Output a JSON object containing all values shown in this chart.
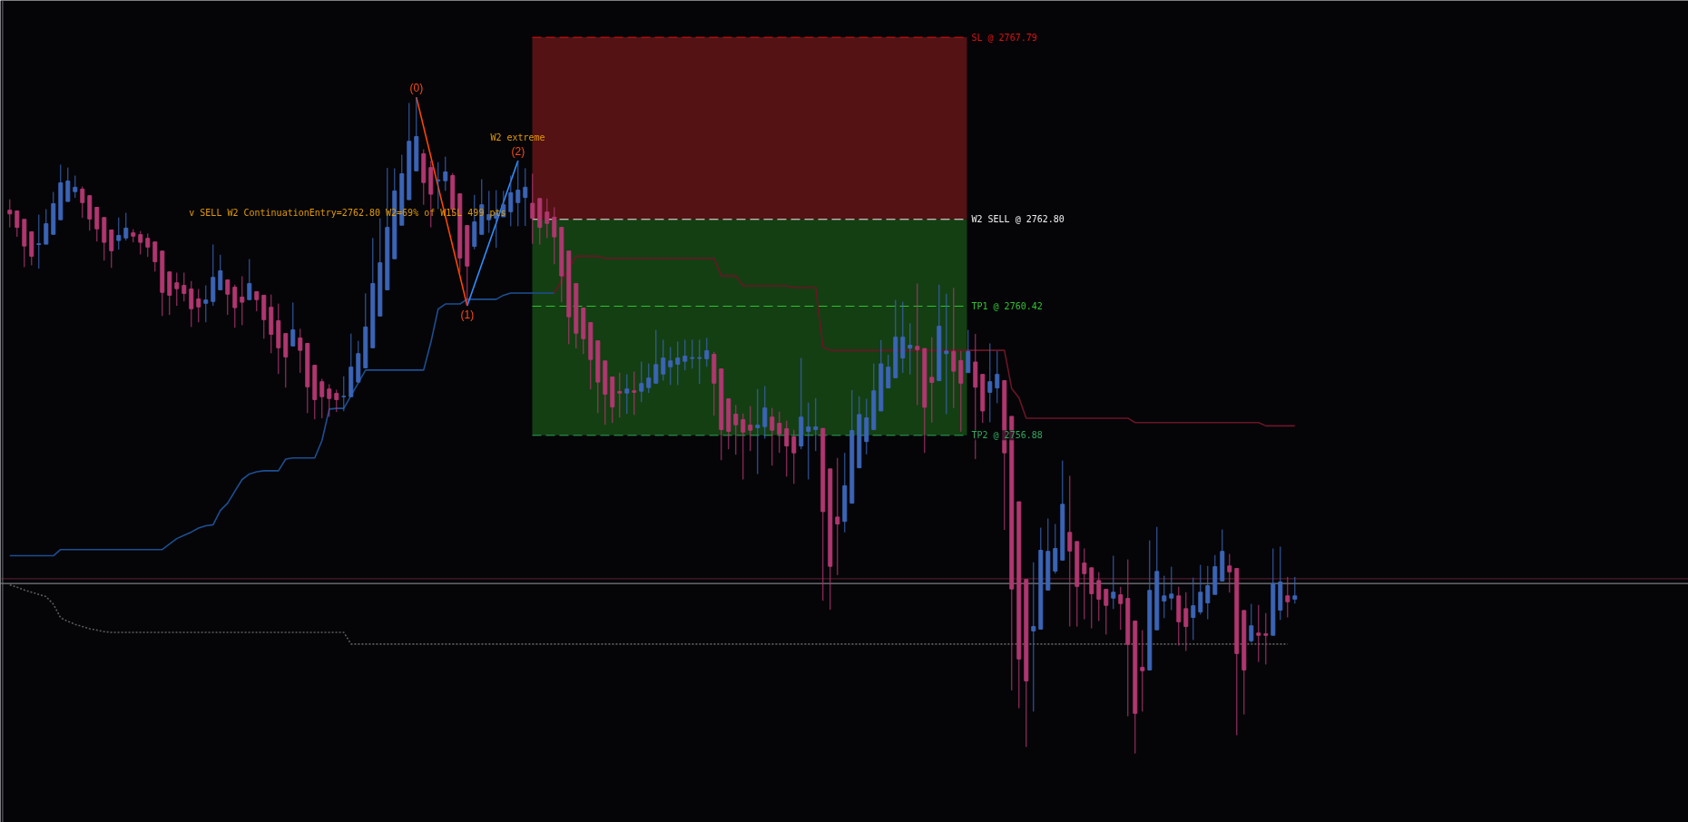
{
  "chart_data": {
    "type": "candlestick",
    "categories": [
      null,
      null,
      null,
      null,
      null,
      null,
      null,
      null,
      null,
      null,
      null,
      null,
      null,
      null,
      null,
      null,
      null,
      null,
      null,
      null,
      null,
      null,
      null,
      null,
      null,
      null,
      null,
      null,
      null,
      null,
      null,
      null,
      null,
      null,
      null,
      null,
      null,
      null,
      null,
      null,
      null,
      null,
      null,
      null,
      null,
      null,
      null,
      null,
      null,
      null,
      null,
      null,
      null,
      null,
      null,
      null,
      null,
      null,
      null,
      null,
      null,
      null,
      null,
      null,
      null,
      null,
      null,
      null,
      null,
      null,
      null,
      null,
      null,
      null,
      null,
      null,
      null,
      null,
      null,
      null,
      null,
      null,
      null,
      null,
      null,
      null,
      null,
      null,
      null,
      null,
      null,
      null,
      null,
      null,
      null,
      null,
      null,
      null,
      null,
      null,
      null,
      null,
      null,
      null,
      null,
      null,
      null,
      null,
      null,
      null,
      null,
      null,
      null,
      null,
      null,
      null,
      null,
      null,
      null,
      null,
      null,
      null,
      null,
      null,
      null,
      null,
      null,
      null,
      null,
      null,
      null,
      null,
      null,
      null,
      null,
      null,
      null,
      null,
      null,
      null,
      null,
      null,
      null,
      null,
      null,
      null,
      null,
      null,
      null,
      null,
      null,
      null,
      null,
      null,
      null,
      null,
      null,
      null,
      null,
      null,
      null,
      null,
      null,
      null,
      null,
      null,
      null,
      null,
      null,
      null,
      null,
      null,
      null,
      null,
      null,
      null,
      null,
      null
    ],
    "ohlc": [
      [
        2763.05,
        2763.35,
        2762.58,
        2762.95
      ],
      [
        2763.03,
        2763.03,
        2762.32,
        2762.58
      ],
      [
        2762.8,
        2762.8,
        2761.49,
        2762.07
      ],
      [
        2762.46,
        2762.46,
        2761.54,
        2761.79
      ],
      [
        2762.11,
        2762.93,
        2761.45,
        2762.13
      ],
      [
        2762.12,
        2763.08,
        2762.12,
        2762.68
      ],
      [
        2762.39,
        2763.55,
        2762.39,
        2763.23
      ],
      [
        2762.79,
        2764.3,
        2762.79,
        2763.8
      ],
      [
        2763.29,
        2764.22,
        2763.29,
        2763.85
      ],
      [
        2763.56,
        2764.0,
        2763.39,
        2763.68
      ],
      [
        2763.63,
        2763.7,
        2762.84,
        2763.26
      ],
      [
        2763.45,
        2763.45,
        2762.49,
        2762.81
      ],
      [
        2763.13,
        2763.13,
        2762.19,
        2762.54
      ],
      [
        2762.85,
        2762.85,
        2761.67,
        2762.17
      ],
      [
        2762.51,
        2762.51,
        2761.47,
        2761.94
      ],
      [
        2762.22,
        2762.85,
        2761.97,
        2762.36
      ],
      [
        2762.29,
        2762.98,
        2762.22,
        2762.56
      ],
      [
        2762.43,
        2762.53,
        2762.17,
        2762.34
      ],
      [
        2762.38,
        2762.48,
        2761.84,
        2762.17
      ],
      [
        2762.28,
        2762.41,
        2761.77,
        2762.04
      ],
      [
        2762.18,
        2762.18,
        2761.37,
        2761.64
      ],
      [
        2761.93,
        2761.93,
        2760.15,
        2760.8
      ],
      [
        2761.36,
        2761.36,
        2760.18,
        2760.72
      ],
      [
        2761.06,
        2761.34,
        2760.43,
        2760.9
      ],
      [
        2760.99,
        2761.34,
        2760.55,
        2760.77
      ],
      [
        2760.89,
        2761.11,
        2759.85,
        2760.35
      ],
      [
        2760.62,
        2760.89,
        2759.98,
        2760.4
      ],
      [
        2760.5,
        2760.99,
        2759.98,
        2760.59
      ],
      [
        2760.55,
        2762.11,
        2760.43,
        2761.21
      ],
      [
        2760.87,
        2761.83,
        2760.87,
        2761.39
      ],
      [
        2761.14,
        2761.14,
        2760.18,
        2760.75
      ],
      [
        2760.94,
        2761.01,
        2759.83,
        2760.38
      ],
      [
        2760.67,
        2761.24,
        2759.9,
        2760.53
      ],
      [
        2760.6,
        2761.71,
        2760.6,
        2761.04
      ],
      [
        2760.82,
        2760.82,
        2760.28,
        2760.6
      ],
      [
        2760.72,
        2760.72,
        2759.53,
        2760.05
      ],
      [
        2760.39,
        2760.74,
        2759.13,
        2759.65
      ],
      [
        2760.02,
        2760.49,
        2758.56,
        2759.28
      ],
      [
        2759.67,
        2759.67,
        2758.19,
        2759.03
      ],
      [
        2759.33,
        2760.52,
        2759.33,
        2759.77
      ],
      [
        2759.55,
        2759.8,
        2758.59,
        2759.21
      ],
      [
        2759.4,
        2759.4,
        2757.49,
        2758.21
      ],
      [
        2758.8,
        2758.8,
        2757.32,
        2757.86
      ],
      [
        2758.35,
        2758.43,
        2757.35,
        2757.94
      ],
      [
        2758.15,
        2758.28,
        2757.39,
        2757.89
      ],
      [
        2758.03,
        2758.13,
        2757.52,
        2757.86
      ],
      [
        2757.94,
        2758.5,
        2757.54,
        2757.95
      ],
      [
        2757.94,
        2759.67,
        2757.94,
        2758.75
      ],
      [
        2758.34,
        2759.47,
        2758.34,
        2759.12
      ],
      [
        2758.73,
        2760.77,
        2758.73,
        2759.85
      ],
      [
        2759.28,
        2762.29,
        2759.28,
        2761.04
      ],
      [
        2760.15,
        2762.83,
        2760.15,
        2761.61
      ],
      [
        2760.87,
        2764.21,
        2760.87,
        2762.58
      ],
      [
        2761.72,
        2764.2,
        2761.72,
        2763.58
      ],
      [
        2762.64,
        2764.57,
        2762.64,
        2764.05
      ],
      [
        2763.34,
        2765.99,
        2763.34,
        2764.94
      ],
      [
        2764.13,
        2766.15,
        2764.13,
        2765.07
      ],
      [
        2764.6,
        2764.72,
        2763.2,
        2763.81
      ],
      [
        2764.22,
        2764.41,
        2762.58,
        2763.49
      ],
      [
        2763.86,
        2764.37,
        2763.08,
        2763.88
      ],
      [
        2763.86,
        2764.52,
        2763.58,
        2764.1
      ],
      [
        2764.0,
        2764.07,
        2762.91,
        2763.08
      ],
      [
        2763.5,
        2763.5,
        2761.34,
        2761.74
      ],
      [
        2762.63,
        2762.63,
        2760.43,
        2761.52
      ],
      [
        2762.06,
        2763.47,
        2761.98,
        2762.73
      ],
      [
        2762.39,
        2763.9,
        2762.39,
        2763.2
      ],
      [
        2762.79,
        2763.58,
        2762.43,
        2762.93
      ],
      [
        2762.83,
        2763.6,
        2762.02,
        2762.98
      ],
      [
        2762.87,
        2763.58,
        2762.87,
        2763.2
      ],
      [
        2763.01,
        2764.0,
        2762.61,
        2763.53
      ],
      [
        2763.26,
        2764.41,
        2762.61,
        2763.6
      ],
      [
        2763.4,
        2764.2,
        2762.62,
        2763.68
      ],
      [
        2763.24,
        2764.05,
        2762.13,
        2762.83
      ],
      [
        2763.37,
        2763.37,
        2762.11,
        2762.58
      ],
      [
        2763.0,
        2763.37,
        2762.29,
        2762.69
      ],
      [
        2762.86,
        2763.13,
        2761.57,
        2762.32
      ],
      [
        2762.58,
        2762.58,
        2760.53,
        2761.25
      ],
      [
        2761.93,
        2761.93,
        2759.38,
        2760.13
      ],
      [
        2761.04,
        2761.04,
        2759.26,
        2759.68
      ],
      [
        2760.37,
        2760.37,
        2759.11,
        2759.53
      ],
      [
        2759.97,
        2759.97,
        2758.14,
        2758.96
      ],
      [
        2759.47,
        2759.47,
        2757.49,
        2758.34
      ],
      [
        2758.92,
        2758.92,
        2757.17,
        2758.01
      ],
      [
        2758.48,
        2758.48,
        2757.22,
        2757.66
      ],
      [
        2758.08,
        2758.6,
        2757.37,
        2758.04
      ],
      [
        2758.04,
        2758.55,
        2757.47,
        2758.15
      ],
      [
        2758.1,
        2758.63,
        2757.44,
        2758.06
      ],
      [
        2758.09,
        2758.9,
        2757.79,
        2758.3
      ],
      [
        2758.19,
        2758.85,
        2758.04,
        2758.45
      ],
      [
        2758.31,
        2759.77,
        2758.29,
        2758.82
      ],
      [
        2758.56,
        2759.5,
        2758.38,
        2759.0
      ],
      [
        2758.76,
        2759.3,
        2758.26,
        2758.92
      ],
      [
        2758.83,
        2759.45,
        2758.26,
        2759.0
      ],
      [
        2758.91,
        2759.5,
        2758.66,
        2759.05
      ],
      [
        2758.99,
        2759.5,
        2758.71,
        2759.01
      ],
      [
        2758.99,
        2759.5,
        2758.29,
        2759.01
      ],
      [
        2758.98,
        2759.55,
        2758.76,
        2759.2
      ],
      [
        2759.1,
        2759.17,
        2757.42,
        2758.31
      ],
      [
        2758.7,
        2758.7,
        2756.2,
        2757.04
      ],
      [
        2757.88,
        2757.88,
        2756.5,
        2756.99
      ],
      [
        2757.46,
        2757.71,
        2756.35,
        2757.17
      ],
      [
        2757.31,
        2757.48,
        2755.67,
        2756.97
      ],
      [
        2757.16,
        2757.68,
        2756.45,
        2757.02
      ],
      [
        2757.09,
        2758.15,
        2755.82,
        2757.16
      ],
      [
        2757.12,
        2758.23,
        2756.79,
        2757.63
      ],
      [
        2757.38,
        2757.63,
        2756.05,
        2757.02
      ],
      [
        2757.21,
        2757.53,
        2756.4,
        2756.92
      ],
      [
        2757.06,
        2757.28,
        2755.75,
        2756.59
      ],
      [
        2756.84,
        2757.03,
        2755.55,
        2756.4
      ],
      [
        2756.59,
        2759.0,
        2756.5,
        2757.38
      ],
      [
        2756.99,
        2757.78,
        2755.67,
        2757.11
      ],
      [
        2757.04,
        2757.9,
        2756.45,
        2757.11
      ],
      [
        2757.07,
        2757.07,
        2752.35,
        2754.79
      ],
      [
        2755.96,
        2755.96,
        2752.1,
        2753.29
      ],
      [
        2754.64,
        2756.26,
        2753.05,
        2754.45
      ],
      [
        2754.52,
        2756.4,
        2754.22,
        2755.5
      ],
      [
        2755.02,
        2758.12,
        2755.02,
        2757.01
      ],
      [
        2755.99,
        2757.95,
        2755.99,
        2757.45
      ],
      [
        2756.71,
        2757.88,
        2756.36,
        2757.36
      ],
      [
        2757.04,
        2758.85,
        2757.04,
        2758.1
      ],
      [
        2757.55,
        2759.49,
        2757.55,
        2758.84
      ],
      [
        2758.18,
        2759.09,
        2758.18,
        2758.75
      ],
      [
        2758.46,
        2760.59,
        2758.46,
        2759.57
      ],
      [
        2759.0,
        2760.54,
        2758.59,
        2759.57
      ],
      [
        2759.27,
        2759.95,
        2758.55,
        2759.35
      ],
      [
        2759.32,
        2761.04,
        2757.71,
        2759.23
      ],
      [
        2759.26,
        2759.26,
        2756.4,
        2757.65
      ],
      [
        2758.47,
        2759.57,
        2757.23,
        2758.33
      ],
      [
        2758.38,
        2761.01,
        2758.38,
        2759.87
      ],
      [
        2759.12,
        2760.76,
        2757.46,
        2759.19
      ],
      [
        2759.18,
        2760.92,
        2757.63,
        2758.64
      ],
      [
        2758.93,
        2759.19,
        2756.98,
        2758.31
      ],
      [
        2758.6,
        2759.77,
        2758.6,
        2759.18
      ],
      [
        2758.89,
        2759.66,
        2756.23,
        2758.2
      ],
      [
        2758.55,
        2758.55,
        2757.22,
        2757.55
      ],
      [
        2758.06,
        2759.4,
        2757.24,
        2758.35
      ],
      [
        2758.18,
        2759.19,
        2757.76,
        2758.55
      ],
      [
        2758.38,
        2758.38,
        2754.29,
        2756.4
      ],
      [
        2757.4,
        2757.4,
        2749.89,
        2752.67
      ],
      [
        2755.06,
        2755.06,
        2749.4,
        2750.75
      ],
      [
        2752.93,
        2752.93,
        2748.34,
        2750.15
      ],
      [
        2751.52,
        2753.4,
        2749.31,
        2751.64
      ],
      [
        2751.57,
        2754.35,
        2751.57,
        2753.73
      ],
      [
        2752.64,
        2754.6,
        2752.64,
        2753.7
      ],
      [
        2753.16,
        2754.45,
        2753.09,
        2753.78
      ],
      [
        2753.46,
        2756.19,
        2753.46,
        2754.99
      ],
      [
        2754.22,
        2755.77,
        2751.64,
        2753.71
      ],
      [
        2753.97,
        2753.97,
        2751.64,
        2752.74
      ],
      [
        2753.38,
        2753.78,
        2751.84,
        2753.09
      ],
      [
        2753.25,
        2753.25,
        2751.59,
        2752.54
      ],
      [
        2752.9,
        2753.13,
        2751.79,
        2752.39
      ],
      [
        2752.66,
        2752.66,
        2751.42,
        2752.22
      ],
      [
        2752.42,
        2753.58,
        2752.12,
        2752.58
      ],
      [
        2752.51,
        2752.73,
        2751.55,
        2752.27
      ],
      [
        2752.41,
        2753.48,
        2749.18,
        2751.15
      ],
      [
        2751.79,
        2751.79,
        2748.16,
        2749.26
      ],
      [
        2750.52,
        2751.54,
        2749.31,
        2750.43
      ],
      [
        2750.45,
        2754.0,
        2750.45,
        2752.63
      ],
      [
        2751.55,
        2754.37,
        2751.55,
        2753.15
      ],
      [
        2752.34,
        2753.03,
        2751.87,
        2752.48
      ],
      [
        2752.42,
        2753.28,
        2752.09,
        2752.53
      ],
      [
        2752.48,
        2752.73,
        2751.12,
        2751.77
      ],
      [
        2752.13,
        2752.58,
        2750.97,
        2751.64
      ],
      [
        2751.89,
        2752.98,
        2751.27,
        2752.21
      ],
      [
        2752.04,
        2753.33,
        2751.97,
        2752.58
      ],
      [
        2752.29,
        2753.3,
        2751.84,
        2752.76
      ],
      [
        2752.52,
        2753.6,
        2752.52,
        2753.28
      ],
      [
        2752.89,
        2754.3,
        2752.89,
        2753.7
      ],
      [
        2753.3,
        2753.63,
        2752.57,
        2753.14
      ],
      [
        2753.23,
        2753.23,
        2748.66,
        2750.9
      ],
      [
        2752.08,
        2752.08,
        2749.23,
        2750.45
      ],
      [
        2751.25,
        2752.26,
        2751.2,
        2751.66
      ],
      [
        2751.46,
        2752.23,
        2750.67,
        2751.4
      ],
      [
        2751.44,
        2752.01,
        2750.6,
        2751.4
      ],
      [
        2751.4,
        2753.78,
        2751.4,
        2752.82
      ],
      [
        2752.09,
        2753.83,
        2751.82,
        2752.86
      ],
      [
        2752.48,
        2753.0,
        2751.89,
        2752.32
      ],
      [
        2752.39,
        2753.0,
        2752.27,
        2752.48
      ]
    ],
    "colors": [
      "#b0376f",
      "#b0376f",
      "#b0376f",
      "#b0376f",
      "#3b64b6",
      "#3b64b6",
      "#3b64b6",
      "#3b64b6",
      "#3b64b6",
      "#3b64b6",
      "#b0376f",
      "#b0376f",
      "#b0376f",
      "#b0376f",
      "#b0376f",
      "#3b64b6",
      "#3b64b6",
      "#b0376f",
      "#b0376f",
      "#b0376f",
      "#b0376f",
      "#b0376f",
      "#b0376f",
      "#b0376f",
      "#b0376f",
      "#b0376f",
      "#b0376f",
      "#3b64b6",
      "#3b64b6",
      "#3b64b6",
      "#b0376f",
      "#b0376f",
      "#b0376f",
      "#3b64b6",
      "#b0376f",
      "#b0376f",
      "#b0376f",
      "#b0376f",
      "#b0376f",
      "#3b64b6",
      "#b0376f",
      "#b0376f",
      "#b0376f",
      "#b0376f",
      "#b0376f",
      "#b0376f",
      "#3b64b6",
      "#3b64b6",
      "#3b64b6",
      "#3b64b6",
      "#3b64b6",
      "#3b64b6",
      "#3b64b6",
      "#3b64b6",
      "#3b64b6",
      "#3b64b6",
      "#3b64b6",
      "#b0376f",
      "#b0376f",
      "#3b64b6",
      "#3b64b6",
      "#b0376f",
      "#b0376f",
      "#b0376f",
      "#3b64b6",
      "#3b64b6",
      "#3b64b6",
      "#3b64b6",
      "#3b64b6",
      "#3b64b6",
      "#3b64b6",
      "#3b64b6",
      "#b0376f",
      "#b0376f",
      "#b0376f",
      "#b0376f",
      "#b0376f",
      "#b0376f",
      "#b0376f",
      "#b0376f",
      "#b0376f",
      "#b0376f",
      "#b0376f",
      "#b0376f",
      "#b0376f",
      "#3b64b6",
      "#b0376f",
      "#3b64b6",
      "#3b64b6",
      "#3b64b6",
      "#3b64b6",
      "#3b64b6",
      "#3b64b6",
      "#3b64b6",
      "#3b64b6",
      "#3b64b6",
      "#3b64b6",
      "#b0376f",
      "#b0376f",
      "#b0376f",
      "#b0376f",
      "#b0376f",
      "#b0376f",
      "#3b64b6",
      "#3b64b6",
      "#b0376f",
      "#b0376f",
      "#b0376f",
      "#b0376f",
      "#3b64b6",
      "#3b64b6",
      "#3b64b6",
      "#b0376f",
      "#b0376f",
      "#b0376f",
      "#3b64b6",
      "#3b64b6",
      "#3b64b6",
      "#3b64b6",
      "#3b64b6",
      "#3b64b6",
      "#3b64b6",
      "#3b64b6",
      "#3b64b6",
      "#3b64b6",
      "#b0376f",
      "#b0376f",
      "#b0376f",
      "#3b64b6",
      "#3b64b6",
      "#b0376f",
      "#b0376f",
      "#3b64b6",
      "#b0376f",
      "#b0376f",
      "#3b64b6",
      "#3b64b6",
      "#b0376f",
      "#b0376f",
      "#b0376f",
      "#b0376f",
      "#3b64b6",
      "#3b64b6",
      "#3b64b6",
      "#3b64b6",
      "#3b64b6",
      "#b0376f",
      "#b0376f",
      "#b0376f",
      "#b0376f",
      "#b0376f",
      "#b0376f",
      "#3b64b6",
      "#b0376f",
      "#b0376f",
      "#b0376f",
      "#b0376f",
      "#3b64b6",
      "#3b64b6",
      "#3b64b6",
      "#3b64b6",
      "#b0376f",
      "#b0376f",
      "#3b64b6",
      "#3b64b6",
      "#3b64b6",
      "#3b64b6",
      "#3b64b6",
      "#b0376f",
      "#b0376f",
      "#b0376f",
      "#3b64b6",
      "#b0376f",
      "#b0376f",
      "#3b64b6",
      "#3b64b6",
      "#b0376f",
      "#3b64b6"
    ],
    "series": [
      {
        "type": "line",
        "color": "#1d4f91",
        "values": [
          2753.58,
          2753.58,
          2753.58,
          2753.58,
          2753.58,
          2753.58,
          2753.58,
          2753.75,
          2753.75,
          2753.75,
          2753.75,
          2753.75,
          2753.75,
          2753.75,
          2753.75,
          2753.75,
          2753.75,
          2753.75,
          2753.75,
          2753.75,
          2753.75,
          2753.75,
          2753.9,
          2754.05,
          2754.14,
          2754.23,
          2754.34,
          2754.4,
          2754.43,
          2754.82,
          2755.02,
          2755.35,
          2755.67,
          2755.82,
          2755.88,
          2755.91,
          2755.91,
          2755.91,
          2756.23,
          2756.26,
          2756.26,
          2756.26,
          2756.26,
          2756.74,
          2757.6,
          2757.62,
          2757.62,
          null,
          null,
          2758.67,
          2758.67,
          2758.67,
          2758.67,
          2758.67,
          2758.67,
          2758.67,
          2758.67,
          2758.67,
          2759.43,
          2760.34,
          2760.48,
          2760.48,
          2760.48,
          2760.61,
          2760.61,
          2760.61,
          2760.61,
          2760.61,
          2760.72,
          2760.78,
          2760.78,
          2760.78,
          2760.78,
          2760.78,
          2760.78,
          2760.78,
          null,
          null,
          null,
          null,
          null,
          null,
          null,
          null,
          null,
          null,
          null,
          null,
          null,
          null,
          null,
          null,
          null,
          null,
          null,
          null,
          null,
          null,
          null,
          null,
          null,
          null,
          null,
          null,
          null,
          null,
          null,
          null,
          null,
          null,
          null,
          null,
          null,
          null,
          null,
          null,
          null,
          null,
          null,
          null,
          null,
          null,
          null,
          null,
          null,
          null,
          null,
          null,
          null,
          null,
          null,
          null,
          null,
          null,
          null,
          null,
          null,
          null,
          null,
          null,
          null,
          null,
          null,
          null,
          null,
          null,
          null,
          null,
          null,
          null,
          null,
          null,
          null,
          null,
          null,
          null,
          null,
          null,
          null,
          null,
          null,
          null,
          null,
          null,
          null,
          null,
          null,
          null,
          null,
          null,
          null,
          null,
          null,
          null,
          null,
          null,
          null,
          null
        ]
      },
      {
        "type": "line",
        "color": "#6b1526",
        "values": [
          null,
          null,
          null,
          null,
          null,
          null,
          null,
          null,
          null,
          null,
          null,
          null,
          null,
          null,
          null,
          null,
          null,
          null,
          null,
          null,
          null,
          null,
          null,
          null,
          null,
          null,
          null,
          null,
          null,
          null,
          null,
          null,
          null,
          null,
          null,
          null,
          null,
          null,
          null,
          null,
          null,
          null,
          null,
          null,
          null,
          null,
          null,
          null,
          null,
          null,
          null,
          null,
          null,
          null,
          null,
          null,
          null,
          null,
          null,
          null,
          null,
          null,
          null,
          null,
          null,
          null,
          null,
          null,
          null,
          null,
          null,
          null,
          null,
          null,
          null,
          2760.78,
          null,
          null,
          2761.79,
          2761.79,
          2761.79,
          2761.79,
          2761.73,
          2761.73,
          2761.73,
          2761.73,
          2761.73,
          2761.73,
          2761.73,
          2761.73,
          2761.73,
          2761.73,
          2761.73,
          2761.73,
          2761.73,
          2761.73,
          2761.73,
          2761.73,
          2761.25,
          2761.25,
          2761.25,
          2760.98,
          2760.98,
          2760.98,
          2760.98,
          2760.98,
          2760.98,
          2760.98,
          2760.93,
          2760.93,
          2760.93,
          2760.93,
          2759.3,
          2759.21,
          2759.21,
          2759.21,
          2759.21,
          2759.21,
          2759.21,
          2759.21,
          2759.21,
          2759.21,
          null,
          null,
          2759.21,
          2759.21,
          null,
          2759.21,
          null,
          2759.21,
          2759.21,
          2759.21,
          2759.21,
          2759.21,
          2759.21,
          2759.21,
          2759.21,
          2759.21,
          2758.16,
          2757.91,
          2757.35,
          2757.35,
          2757.35,
          2757.35,
          2757.35,
          2757.35,
          2757.35,
          2757.35,
          2757.35,
          2757.35,
          2757.35,
          2757.35,
          2757.35,
          2757.35,
          2757.35,
          2757.23,
          2757.23,
          2757.23,
          2757.23,
          2757.23,
          2757.23,
          2757.23,
          2757.23,
          2757.23,
          2757.23,
          2757.23,
          2757.23,
          2757.23,
          2757.23,
          2757.23,
          2757.23,
          2757.23,
          2757.23,
          2757.14,
          2757.14,
          2757.14,
          2757.14,
          2757.14
        ]
      },
      {
        "type": "line",
        "color": "#5c5c5c",
        "line_style": "dotted",
        "values": [
          2752.78,
          2752.72,
          2752.64,
          2752.58,
          2752.52,
          2752.46,
          2752.25,
          2751.88,
          2751.78,
          2751.7,
          2751.64,
          2751.58,
          2751.54,
          2751.5,
          2751.48,
          2751.48,
          2751.48,
          2751.48,
          2751.48,
          2751.48,
          2751.48,
          2751.48,
          2751.48,
          2751.48,
          2751.48,
          2751.48,
          2751.48,
          2751.48,
          2751.48,
          2751.48,
          2751.48,
          2751.48,
          2751.48,
          2751.48,
          2751.48,
          2751.48,
          2751.48,
          2751.48,
          2751.48,
          2751.48,
          2751.48,
          2751.48,
          2751.48,
          2751.48,
          2751.48,
          2751.48,
          2751.48,
          2751.16,
          2751.16,
          2751.16,
          2751.16,
          2751.16,
          2751.16,
          2751.16,
          2751.16,
          2751.16,
          2751.16,
          2751.16,
          2751.16,
          2751.16,
          2751.16,
          2751.16,
          2751.16,
          2751.16,
          2751.16,
          2751.16,
          2751.16,
          2751.16,
          2751.16,
          2751.16,
          2751.16,
          2751.16,
          2751.16,
          2751.16,
          2751.16,
          2751.16,
          2751.16,
          2751.16,
          2751.16,
          2751.16,
          2751.16,
          2751.16,
          2751.16,
          2751.16,
          2751.16,
          2751.16,
          2751.16,
          2751.16,
          2751.16,
          2751.16,
          2751.16,
          2751.16,
          2751.16,
          2751.16,
          2751.16,
          2751.16,
          2751.16,
          2751.16,
          2751.16,
          2751.16,
          2751.16,
          2751.16,
          2751.16,
          2751.16,
          2751.16,
          2751.16,
          2751.16,
          2751.16,
          2751.16,
          2751.16,
          2751.16,
          2751.16,
          2751.16,
          2751.16,
          2751.16,
          2751.16,
          2751.16,
          2751.16,
          2751.16,
          2751.16,
          2751.16,
          2751.16,
          2751.16,
          2751.16,
          2751.16,
          2751.16,
          2751.16,
          2751.16,
          2751.16,
          2751.16,
          2751.16,
          2751.16,
          2751.16,
          2751.16,
          2751.16,
          2751.16,
          2751.16,
          2751.16,
          2751.16,
          null,
          null,
          2751.16,
          2751.16,
          2751.16,
          2751.16,
          2751.16,
          2751.16,
          2751.16,
          2751.16,
          2751.16,
          2751.16,
          2751.16,
          2751.16,
          2751.16,
          2751.16,
          null,
          2751.16,
          null,
          2751.16,
          2751.16,
          2751.16,
          2751.16,
          2751.16,
          2751.16,
          2751.16,
          2751.16,
          2751.16,
          2751.16,
          2751.16,
          null,
          null,
          2751.16,
          2751.16,
          2751.16,
          2751.16,
          2751.16,
          2751.16,
          null
        ]
      },
      {
        "type": "line",
        "color": "#ff4500",
        "values": [
          null,
          null,
          null,
          null,
          null,
          null,
          null,
          null,
          null,
          null,
          null,
          null,
          null,
          null,
          null,
          null,
          null,
          null,
          null,
          null,
          null,
          null,
          null,
          null,
          null,
          null,
          null,
          null,
          null,
          null,
          null,
          null,
          null,
          null,
          null,
          null,
          null,
          null,
          null,
          null,
          null,
          null,
          null,
          null,
          null,
          null,
          null,
          null,
          null,
          null,
          null,
          null,
          null,
          null,
          null,
          null,
          2766.15,
          null,
          null,
          null,
          null,
          null,
          null,
          2760.43,
          null,
          null,
          null,
          null,
          null,
          null,
          null,
          null,
          null,
          null,
          null,
          null,
          null,
          null,
          null,
          null,
          null,
          null,
          null,
          null,
          null,
          null,
          null,
          null,
          null,
          null,
          null,
          null,
          null,
          null,
          null,
          null,
          null,
          null,
          null,
          null,
          null,
          null,
          null,
          null,
          null,
          null,
          null,
          null,
          null,
          null,
          null,
          null,
          null,
          null,
          null,
          null,
          null,
          null,
          null,
          null,
          null,
          null,
          null,
          null,
          null,
          null,
          null,
          null,
          null,
          null,
          null,
          null,
          null,
          null,
          null,
          null,
          null,
          null,
          null,
          null,
          null,
          null,
          null,
          null,
          null,
          null,
          null,
          null,
          null,
          null,
          null,
          null,
          null,
          null,
          null,
          null,
          null,
          null,
          null,
          null,
          null,
          null,
          null,
          null,
          null,
          null,
          null,
          null,
          null,
          null,
          null,
          null,
          null,
          null,
          null,
          null,
          null,
          null
        ]
      },
      {
        "type": "line",
        "color": "#2f8fff",
        "values": [
          null,
          null,
          null,
          null,
          null,
          null,
          null,
          null,
          null,
          null,
          null,
          null,
          null,
          null,
          null,
          null,
          null,
          null,
          null,
          null,
          null,
          null,
          null,
          null,
          null,
          null,
          null,
          null,
          null,
          null,
          null,
          null,
          null,
          null,
          null,
          null,
          null,
          null,
          null,
          null,
          null,
          null,
          null,
          null,
          null,
          null,
          null,
          null,
          null,
          null,
          null,
          null,
          null,
          null,
          null,
          null,
          null,
          null,
          null,
          null,
          null,
          null,
          null,
          2760.43,
          null,
          null,
          null,
          null,
          null,
          null,
          2764.41,
          null,
          null,
          null,
          null,
          null,
          null,
          null,
          null,
          null,
          null,
          null,
          null,
          null,
          null,
          null,
          null,
          null,
          null,
          null,
          null,
          null,
          null,
          null,
          null,
          null,
          null,
          null,
          null,
          null,
          null,
          null,
          null,
          null,
          null,
          null,
          null,
          null,
          null,
          null,
          null,
          null,
          null,
          null,
          null,
          null,
          null,
          null,
          null,
          null,
          null,
          null,
          null,
          null,
          null,
          null,
          null,
          null,
          null,
          null,
          null,
          null,
          null,
          null,
          null,
          null,
          null,
          null,
          null,
          null,
          null,
          null,
          null,
          null,
          null,
          null,
          null,
          null,
          null,
          null,
          null,
          null,
          null,
          null,
          null,
          null,
          null,
          null,
          null,
          null,
          null,
          null,
          null,
          null,
          null,
          null,
          null,
          null,
          null,
          null,
          null,
          null,
          null,
          null,
          null,
          null,
          null,
          null
        ]
      }
    ],
    "ylim": [
      2746.27,
      2768.8
    ],
    "bands": [
      {
        "axis": "y",
        "from": 2762.8,
        "to": 2767.79,
        "color": "#541214"
      },
      {
        "axis": "y",
        "from": 2756.88,
        "to": 2762.8,
        "color": "#143f13"
      }
    ],
    "ref_lines": [
      {
        "axis": "y",
        "value": 2767.79,
        "label": "SL  @ 2767.79",
        "color": "#e01010",
        "line_style": "dashed"
      },
      {
        "axis": "y",
        "value": 2762.8,
        "label": "W2 SELL @ 2762.80",
        "color": "#f0f0f0",
        "line_style": "dashed"
      },
      {
        "axis": "y",
        "value": 2760.42,
        "label": "TP1 @ 2760.42",
        "color": "#31c331",
        "line_style": "dashed"
      },
      {
        "axis": "y",
        "value": 2756.88,
        "label": "TP2 @ 2756.88",
        "color": "#32a85c",
        "line_style": "dashed"
      },
      {
        "axis": "y",
        "value": 2752.95,
        "color": "#5e2233",
        "line_style": "solid"
      },
      {
        "axis": "y",
        "value": 2752.82,
        "color": "#9a9aa0",
        "line_style": "solid"
      }
    ],
    "annotations": [
      "v SELL W2 ContinuationEntry=2762.80  W2=69% of W1SL 499 pts",
      "W2 extreme",
      {
        "text": "(0)",
        "y": 2766.15
      },
      {
        "text": "(1)",
        "y": 2760.43
      },
      {
        "text": "(2)",
        "y": 2764.41
      }
    ],
    "tick_labels": false,
    "grid": false
  }
}
